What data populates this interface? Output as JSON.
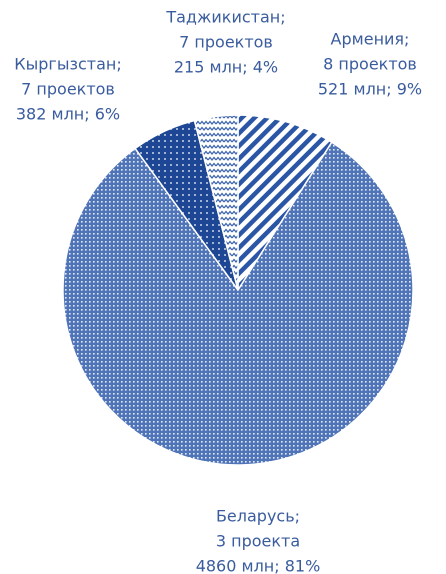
{
  "chart_data": {
    "type": "pie",
    "categories": [
      "Армения;",
      "Беларусь;",
      "Кыргызстан;",
      "Таджикистан;"
    ],
    "project_labels": [
      "8 проектов",
      "3 проекта",
      "7 проектов",
      "7 проектов"
    ],
    "values": [
      9,
      81,
      6,
      4
    ],
    "value_labels": [
      "521 млн; 9%",
      "4860 млн; 81%",
      "382 млн; 6%",
      "215 млн; 4%"
    ],
    "colors": [
      "#2b56a6",
      "#4f74b8",
      "#1d4695",
      "#3d65ae"
    ]
  }
}
